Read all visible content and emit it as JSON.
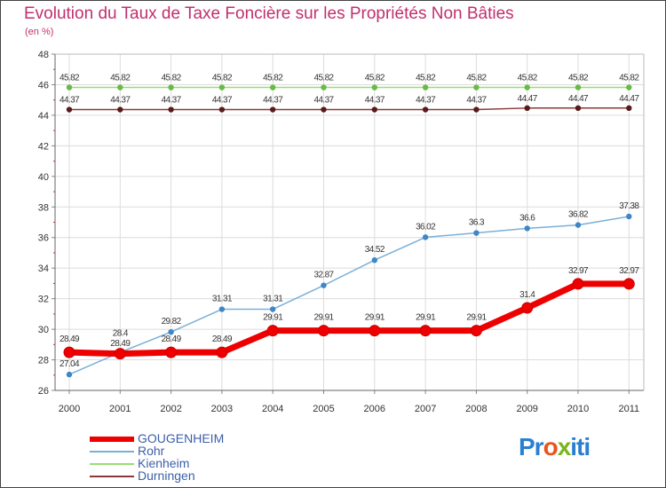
{
  "chart_data": {
    "type": "line",
    "title": "Evolution du Taux de Taxe Foncière sur les Propriétés Non Bâties",
    "subtitle": "(en %)",
    "categories": [
      "2000",
      "2001",
      "2002",
      "2003",
      "2004",
      "2005",
      "2006",
      "2007",
      "2008",
      "2009",
      "2010",
      "2011"
    ],
    "ylim": [
      26,
      48
    ],
    "yticks": [
      "26",
      "28",
      "30",
      "32",
      "34",
      "36",
      "38",
      "40",
      "42",
      "44",
      "46",
      "48"
    ],
    "grid": true,
    "legend_position": "bottom-left",
    "series": [
      {
        "name": "GOUGENHEIM",
        "color": "#ee0000",
        "values": [
          28.49,
          28.4,
          28.49,
          28.49,
          29.91,
          29.91,
          29.91,
          29.91,
          29.91,
          31.4,
          32.97,
          32.97
        ],
        "labels": [
          "28.49",
          "28.4",
          "28.49",
          "28.49",
          "29.91",
          "29.91",
          "29.91",
          "29.91",
          "29.91",
          "31.4",
          "32.97",
          "32.97"
        ]
      },
      {
        "name": "Rohr",
        "color": "#7ab0d8",
        "marker": "#3e86c6",
        "values": [
          27.04,
          28.49,
          29.82,
          31.31,
          31.31,
          32.87,
          34.52,
          36.02,
          36.3,
          36.6,
          36.82,
          37.38
        ],
        "labels": [
          "27.04",
          "28.49",
          "29.82",
          "31.31",
          "31.31",
          "32.87",
          "34.52",
          "36.02",
          "36.3",
          "36.6",
          "36.82",
          "37.38"
        ]
      },
      {
        "name": "Kienheim",
        "color": "#99dd77",
        "marker": "#66bb44",
        "values": [
          45.82,
          45.82,
          45.82,
          45.82,
          45.82,
          45.82,
          45.82,
          45.82,
          45.82,
          45.82,
          45.82,
          45.82
        ],
        "labels": [
          "45.82",
          "45.82",
          "45.82",
          "45.82",
          "45.82",
          "45.82",
          "45.82",
          "45.82",
          "45.82",
          "45.82",
          "45.82",
          "45.82"
        ]
      },
      {
        "name": "Durningen",
        "color": "#8a3a3a",
        "marker": "#5a1a1a",
        "values": [
          44.37,
          44.37,
          44.37,
          44.37,
          44.37,
          44.37,
          44.37,
          44.37,
          44.37,
          44.47,
          44.47,
          44.47
        ],
        "labels": [
          "44.37",
          "44.37",
          "44.37",
          "44.37",
          "44.37",
          "44.37",
          "44.37",
          "44.37",
          "44.37",
          "44.47",
          "44.47",
          "44.47"
        ]
      }
    ]
  },
  "logo": {
    "text_parts": [
      "Pr",
      "o",
      "x",
      "iti"
    ]
  }
}
